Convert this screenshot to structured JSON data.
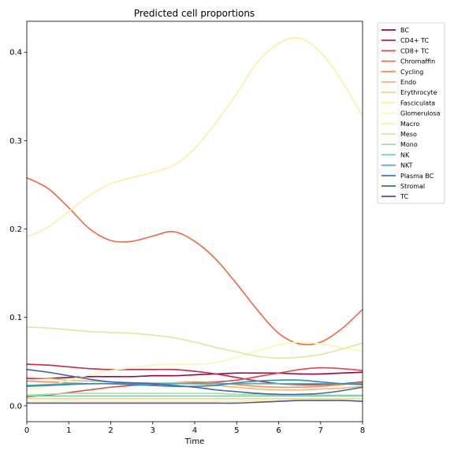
{
  "chart_data": {
    "type": "line",
    "title": "Predicted cell proportions",
    "xlabel": "Time",
    "ylabel": "",
    "xlim": [
      0,
      8
    ],
    "ylim": [
      -0.018,
      0.435
    ],
    "x_ticks": [
      0,
      1,
      2,
      3,
      4,
      5,
      6,
      7,
      8
    ],
    "y_ticks": [
      0.0,
      0.1,
      0.2,
      0.3,
      0.4
    ],
    "x_tick_labels": [
      "0",
      "1",
      "2",
      "3",
      "4",
      "5",
      "6",
      "7",
      "8"
    ],
    "y_tick_labels": [
      "0.0",
      "0.1",
      "0.2",
      "0.3",
      "0.4"
    ],
    "grid": false,
    "legend_position": "outside-top-right",
    "x": [
      0,
      0.5,
      1,
      1.5,
      2,
      2.5,
      3,
      3.5,
      4,
      4.5,
      5,
      5.5,
      6,
      6.5,
      7,
      7.5,
      8
    ],
    "series": [
      {
        "name": "BC",
        "color": "#9e0142",
        "values": [
          0.031,
          0.031,
          0.032,
          0.033,
          0.033,
          0.033,
          0.034,
          0.034,
          0.035,
          0.036,
          0.037,
          0.037,
          0.037,
          0.036,
          0.036,
          0.037,
          0.038
        ]
      },
      {
        "name": "CD4+ TC",
        "color": "#c2294a",
        "values": [
          0.047,
          0.046,
          0.044,
          0.042,
          0.041,
          0.041,
          0.041,
          0.041,
          0.039,
          0.036,
          0.032,
          0.028,
          0.025,
          0.024,
          0.024,
          0.025,
          0.027
        ]
      },
      {
        "name": "CD8+ TC",
        "color": "#dd4a4c",
        "values": [
          0.01,
          0.012,
          0.015,
          0.018,
          0.021,
          0.023,
          0.024,
          0.025,
          0.026,
          0.027,
          0.029,
          0.033,
          0.037,
          0.041,
          0.043,
          0.042,
          0.04
        ]
      },
      {
        "name": "Chromaffin",
        "color": "#f06744",
        "values": [
          0.258,
          0.246,
          0.224,
          0.2,
          0.187,
          0.186,
          0.192,
          0.197,
          0.186,
          0.166,
          0.138,
          0.108,
          0.082,
          0.07,
          0.072,
          0.087,
          0.109
        ]
      },
      {
        "name": "Cycling",
        "color": "#f88d52",
        "values": [
          0.028,
          0.027,
          0.026,
          0.025,
          0.025,
          0.024,
          0.025,
          0.026,
          0.027,
          0.026,
          0.024,
          0.022,
          0.021,
          0.021,
          0.022,
          0.024,
          0.026
        ]
      },
      {
        "name": "Endo",
        "color": "#fdb365",
        "values": [
          0.032,
          0.031,
          0.029,
          0.028,
          0.027,
          0.026,
          0.026,
          0.026,
          0.025,
          0.023,
          0.021,
          0.019,
          0.018,
          0.018,
          0.019,
          0.02,
          0.022
        ]
      },
      {
        "name": "Erythrocyte",
        "color": "#fed481",
        "values": [
          0.008,
          0.008,
          0.008,
          0.008,
          0.008,
          0.008,
          0.008,
          0.008,
          0.008,
          0.008,
          0.008,
          0.008,
          0.008,
          0.008,
          0.008,
          0.008,
          0.008
        ]
      },
      {
        "name": "Fasciculata",
        "color": "#ffeea1",
        "values": [
          0.191,
          0.202,
          0.22,
          0.238,
          0.251,
          0.258,
          0.264,
          0.272,
          0.291,
          0.32,
          0.353,
          0.389,
          0.41,
          0.416,
          0.4,
          0.368,
          0.328
        ]
      },
      {
        "name": "Glomerulosa",
        "color": "#fbf8b0",
        "values": [
          0.018,
          0.022,
          0.029,
          0.035,
          0.04,
          0.043,
          0.046,
          0.047,
          0.047,
          0.049,
          0.055,
          0.062,
          0.069,
          0.072,
          0.07,
          0.066,
          0.062
        ]
      },
      {
        "name": "Macro",
        "color": "#eef8a6",
        "values": [
          0.005,
          0.005,
          0.005,
          0.005,
          0.005,
          0.005,
          0.005,
          0.005,
          0.005,
          0.005,
          0.005,
          0.006,
          0.006,
          0.007,
          0.007,
          0.007,
          0.007
        ]
      },
      {
        "name": "Meso",
        "color": "#d3ed9c",
        "values": [
          0.089,
          0.088,
          0.086,
          0.084,
          0.083,
          0.082,
          0.08,
          0.077,
          0.072,
          0.066,
          0.061,
          0.056,
          0.054,
          0.055,
          0.058,
          0.064,
          0.071
        ]
      },
      {
        "name": "Mono",
        "color": "#a9dca4",
        "values": [
          0.012,
          0.013,
          0.014,
          0.014,
          0.014,
          0.014,
          0.014,
          0.014,
          0.014,
          0.014,
          0.013,
          0.013,
          0.012,
          0.012,
          0.012,
          0.012,
          0.012
        ]
      },
      {
        "name": "NK",
        "color": "#7ccba5",
        "values": [
          0.011,
          0.011,
          0.011,
          0.011,
          0.011,
          0.011,
          0.011,
          0.011,
          0.011,
          0.011,
          0.011,
          0.011,
          0.011,
          0.011,
          0.011,
          0.011,
          0.011
        ]
      },
      {
        "name": "NKT",
        "color": "#53aead",
        "values": [
          0.023,
          0.024,
          0.025,
          0.025,
          0.025,
          0.025,
          0.025,
          0.025,
          0.025,
          0.025,
          0.025,
          0.025,
          0.025,
          0.025,
          0.025,
          0.025,
          0.025
        ]
      },
      {
        "name": "Plasma BC",
        "color": "#3389bb",
        "values": [
          0.022,
          0.023,
          0.024,
          0.025,
          0.025,
          0.024,
          0.023,
          0.022,
          0.022,
          0.023,
          0.026,
          0.028,
          0.029,
          0.029,
          0.027,
          0.025,
          0.024
        ]
      },
      {
        "name": "Stromal",
        "color": "#4065b0",
        "values": [
          0.041,
          0.038,
          0.034,
          0.03,
          0.027,
          0.026,
          0.025,
          0.023,
          0.021,
          0.018,
          0.016,
          0.014,
          0.013,
          0.013,
          0.014,
          0.017,
          0.021
        ]
      },
      {
        "name": "TC",
        "color": "#5e4fa2",
        "values": [
          0.003,
          0.003,
          0.003,
          0.003,
          0.003,
          0.003,
          0.003,
          0.003,
          0.003,
          0.003,
          0.003,
          0.004,
          0.005,
          0.006,
          0.006,
          0.006,
          0.005
        ]
      }
    ]
  }
}
